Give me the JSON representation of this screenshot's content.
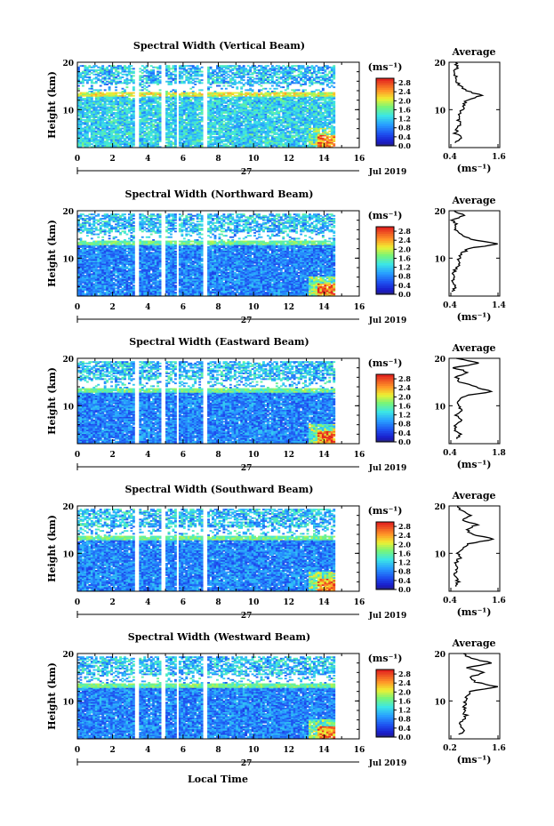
{
  "figure": {
    "xlabel": "Local Time",
    "date_label": "Jul 2019",
    "day_label": "27"
  },
  "chart_data": [
    {
      "type": "heatmap",
      "title": "Spectral Width (Vertical Beam)",
      "xlim": [
        0,
        16
      ],
      "ylim": [
        2,
        20
      ],
      "xticks": [
        0,
        2,
        4,
        6,
        8,
        10,
        12,
        14,
        16
      ],
      "xtick_labels": [
        "0",
        "2",
        "4",
        "6",
        "8",
        "10",
        "12",
        "14",
        "16"
      ],
      "yticks": [
        10,
        20
      ],
      "ytick_labels": [
        "10",
        "20"
      ],
      "ylabel": "Height (km)",
      "data_extent_hours": [
        0,
        14.6
      ],
      "gaps_hours": [
        [
          3.2,
          3.5
        ],
        [
          4.7,
          5.0
        ],
        [
          5.6,
          5.8
        ],
        [
          7.1,
          7.4
        ]
      ],
      "colorbar": {
        "label": "(ms⁻¹)",
        "range": [
          0,
          3.0
        ],
        "tick_labels": [
          "0.0",
          "0.4",
          "0.8",
          "1.2",
          "1.6",
          "2.0",
          "2.4",
          "2.8"
        ]
      },
      "average_profile": {
        "title": "Average",
        "xlabel": "(ms⁻¹)",
        "xlim": [
          0.4,
          1.6
        ],
        "xtick_labels": [
          "0.4",
          "1.6"
        ],
        "ylim": [
          2,
          20
        ],
        "ytick_labels": [
          "10",
          "20"
        ],
        "height_km": [
          3,
          4,
          5,
          6,
          7,
          8,
          9,
          10,
          11,
          12,
          13,
          14,
          15,
          16,
          17,
          18,
          19,
          20
        ],
        "value": [
          0.55,
          0.72,
          0.55,
          0.6,
          0.66,
          0.62,
          0.64,
          0.7,
          0.75,
          0.82,
          1.18,
          0.78,
          0.66,
          0.6,
          0.58,
          0.5,
          0.6,
          0.55
        ]
      }
    },
    {
      "type": "heatmap",
      "title": "Spectral Width (Northward Beam)",
      "xlim": [
        0,
        16
      ],
      "ylim": [
        2,
        20
      ],
      "xticks": [
        0,
        2,
        4,
        6,
        8,
        10,
        12,
        14,
        16
      ],
      "xtick_labels": [
        "0",
        "2",
        "4",
        "6",
        "8",
        "10",
        "12",
        "14",
        "16"
      ],
      "yticks": [
        10,
        20
      ],
      "ytick_labels": [
        "10",
        "20"
      ],
      "ylabel": "Height (km)",
      "data_extent_hours": [
        0,
        14.6
      ],
      "gaps_hours": [
        [
          3.2,
          3.5
        ],
        [
          4.7,
          5.0
        ],
        [
          5.6,
          5.8
        ],
        [
          7.1,
          7.4
        ]
      ],
      "colorbar": {
        "label": "(ms⁻¹)",
        "range": [
          0,
          3.0
        ],
        "tick_labels": [
          "0.0",
          "0.4",
          "0.8",
          "1.2",
          "1.6",
          "2.0",
          "2.4",
          "2.8"
        ]
      },
      "average_profile": {
        "title": "Average",
        "xlabel": "(ms⁻¹)",
        "xlim": [
          0.4,
          1.4
        ],
        "xtick_labels": [
          "0.4",
          "1.4"
        ],
        "ylim": [
          2,
          20
        ],
        "ytick_labels": [
          "10",
          "20"
        ],
        "height_km": [
          3,
          4,
          5,
          6,
          7,
          8,
          9,
          10,
          11,
          12,
          13,
          14,
          15,
          16,
          17,
          18,
          19,
          20
        ],
        "value": [
          0.45,
          0.55,
          0.45,
          0.52,
          0.48,
          0.56,
          0.58,
          0.6,
          0.66,
          0.78,
          1.35,
          0.82,
          0.62,
          0.5,
          0.55,
          0.45,
          0.7,
          0.5
        ]
      }
    },
    {
      "type": "heatmap",
      "title": "Spectral Width (Eastward Beam)",
      "xlim": [
        0,
        16
      ],
      "ylim": [
        2,
        20
      ],
      "xticks": [
        0,
        2,
        4,
        6,
        8,
        10,
        12,
        14,
        16
      ],
      "xtick_labels": [
        "0",
        "2",
        "4",
        "6",
        "8",
        "10",
        "12",
        "14",
        "16"
      ],
      "yticks": [
        10,
        20
      ],
      "ytick_labels": [
        "10",
        "20"
      ],
      "ylabel": "Height (km)",
      "data_extent_hours": [
        0,
        14.6
      ],
      "gaps_hours": [
        [
          3.2,
          3.5
        ],
        [
          4.7,
          5.0
        ],
        [
          5.6,
          5.8
        ],
        [
          7.1,
          7.4
        ]
      ],
      "colorbar": {
        "label": "(ms⁻¹)",
        "range": [
          0,
          3.0
        ],
        "tick_labels": [
          "0.0",
          "0.4",
          "0.8",
          "1.2",
          "1.6",
          "2.0",
          "2.4",
          "2.8"
        ]
      },
      "average_profile": {
        "title": "Average",
        "xlabel": "(ms⁻¹)",
        "xlim": [
          0.4,
          1.8
        ],
        "xtick_labels": [
          "0.4",
          "1.8"
        ],
        "ylim": [
          2,
          20
        ],
        "ytick_labels": [
          "10",
          "20"
        ],
        "height_km": [
          3,
          4,
          5,
          6,
          7,
          8,
          9,
          10,
          11,
          12,
          13,
          14,
          15,
          16,
          17,
          18,
          19,
          20
        ],
        "value": [
          0.6,
          0.75,
          0.55,
          0.6,
          0.7,
          0.62,
          0.75,
          0.65,
          0.7,
          0.8,
          1.55,
          1.1,
          0.7,
          0.6,
          0.95,
          0.55,
          1.2,
          0.6
        ]
      }
    },
    {
      "type": "heatmap",
      "title": "Spectral Width (Southward Beam)",
      "xlim": [
        0,
        16
      ],
      "ylim": [
        2,
        20
      ],
      "xticks": [
        0,
        2,
        4,
        6,
        8,
        10,
        12,
        14,
        16
      ],
      "xtick_labels": [
        "0",
        "2",
        "4",
        "6",
        "8",
        "10",
        "12",
        "14",
        "16"
      ],
      "yticks": [
        10,
        20
      ],
      "ytick_labels": [
        "10",
        "20"
      ],
      "ylabel": "Height (km)",
      "data_extent_hours": [
        0,
        14.6
      ],
      "gaps_hours": [
        [
          3.2,
          3.5
        ],
        [
          4.7,
          5.0
        ],
        [
          5.6,
          5.8
        ],
        [
          7.1,
          7.4
        ]
      ],
      "colorbar": {
        "label": "(ms⁻¹)",
        "range": [
          0,
          3.0
        ],
        "tick_labels": [
          "0.0",
          "0.4",
          "0.8",
          "1.2",
          "1.6",
          "2.0",
          "2.4",
          "2.8"
        ]
      },
      "average_profile": {
        "title": "Average",
        "xlabel": "(ms⁻¹)",
        "xlim": [
          0.4,
          1.6
        ],
        "xtick_labels": [
          "0.4",
          "1.6"
        ],
        "ylim": [
          2,
          20
        ],
        "ytick_labels": [
          "10",
          "20"
        ],
        "height_km": [
          3,
          4,
          5,
          6,
          7,
          8,
          9,
          10,
          11,
          12,
          13,
          14,
          15,
          16,
          17,
          18,
          19,
          20
        ],
        "value": [
          0.55,
          0.62,
          0.52,
          0.58,
          0.6,
          0.56,
          0.65,
          0.62,
          0.7,
          0.85,
          1.45,
          0.95,
          0.8,
          1.05,
          0.75,
          0.9,
          0.7,
          0.6
        ]
      }
    },
    {
      "type": "heatmap",
      "title": "Spectral Width (Westward Beam)",
      "xlim": [
        0,
        16
      ],
      "ylim": [
        2,
        20
      ],
      "xticks": [
        0,
        2,
        4,
        6,
        8,
        10,
        12,
        14,
        16
      ],
      "xtick_labels": [
        "0",
        "2",
        "4",
        "6",
        "8",
        "10",
        "12",
        "14",
        "16"
      ],
      "yticks": [
        10,
        20
      ],
      "ytick_labels": [
        "10",
        "20"
      ],
      "ylabel": "Height (km)",
      "data_extent_hours": [
        0,
        14.6
      ],
      "gaps_hours": [
        [
          3.2,
          3.5
        ],
        [
          4.7,
          5.0
        ],
        [
          5.6,
          5.8
        ],
        [
          7.1,
          7.4
        ]
      ],
      "colorbar": {
        "label": "(ms⁻¹)",
        "range": [
          0,
          3.0
        ],
        "tick_labels": [
          "0.0",
          "0.4",
          "0.8",
          "1.2",
          "1.6",
          "2.0",
          "2.4",
          "2.8"
        ]
      },
      "average_profile": {
        "title": "Average",
        "xlabel": "(ms⁻¹)",
        "xlim": [
          0.2,
          1.6
        ],
        "xtick_labels": [
          "0.2",
          "1.6"
        ],
        "ylim": [
          2,
          20
        ],
        "ytick_labels": [
          "10",
          "20"
        ],
        "height_km": [
          3,
          4,
          5,
          6,
          7,
          8,
          9,
          10,
          11,
          12,
          13,
          14,
          15,
          16,
          17,
          18,
          19,
          20
        ],
        "value": [
          0.5,
          0.62,
          0.52,
          0.58,
          0.66,
          0.6,
          0.64,
          0.62,
          0.68,
          0.8,
          1.5,
          0.95,
          0.75,
          1.2,
          0.7,
          1.35,
          0.8,
          0.6
        ]
      }
    }
  ]
}
